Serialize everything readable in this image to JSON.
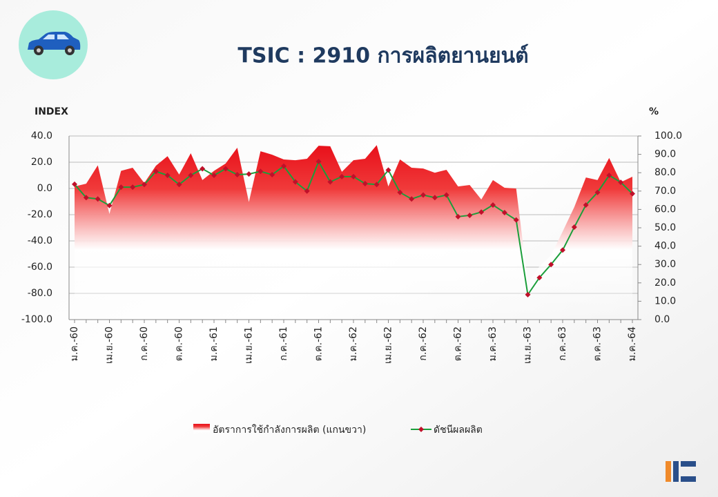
{
  "chart_data": {
    "type": "line",
    "title": "TSIC : 2910 การผลิตยานยนต์",
    "ylabel": "INDEX",
    "y2label": "%",
    "categories": [
      "ม.ค.-60",
      null,
      null,
      "เม.ย.-60",
      null,
      null,
      "ก.ค.-60",
      null,
      null,
      "ต.ค.-60",
      null,
      null,
      "ม.ค.-61",
      null,
      null,
      "เม.ย.-61",
      null,
      null,
      "ก.ค.-61",
      null,
      null,
      "ต.ค.-61",
      null,
      null,
      "ม.ค.-62",
      null,
      null,
      "เม.ย.-62",
      null,
      null,
      "ก.ค.-62",
      null,
      null,
      "ต.ค.-62",
      null,
      null,
      "ม.ค.-63",
      null,
      null,
      "เม.ย.-63",
      null,
      null,
      "ก.ค.-63",
      null,
      null,
      "ต.ค.-63",
      null,
      null,
      "ม.ค.-64"
    ],
    "series": [
      {
        "name": "อัตราการใช้กำลังการผลิต (แกนขวา)",
        "kind": "area",
        "axis": "y2",
        "color": "#e8101a",
        "values": [
          72.5,
          74,
          84,
          57.5,
          81,
          82.7,
          74.4,
          83.8,
          89,
          79,
          90.6,
          76,
          81,
          85,
          93.6,
          64,
          91.7,
          89.8,
          87.2,
          86.8,
          87.6,
          94.7,
          94.4,
          80.5,
          86.8,
          87.6,
          95,
          72.5,
          87.2,
          82.7,
          82.3,
          80,
          81.6,
          72.5,
          73.3,
          65.4,
          76,
          71.8,
          71.4,
          20,
          29,
          35,
          48,
          61.3,
          77.4,
          76,
          88,
          74.8,
          77.8
        ]
      },
      {
        "name": "ดัชนีผลผลิต",
        "kind": "line",
        "color": "#1a9e3a",
        "marker_color": "#c0102a",
        "values": [
          3.2,
          -7,
          -8,
          -13,
          1,
          1,
          3,
          13,
          10,
          3,
          10,
          15,
          10,
          15,
          10.5,
          11,
          13,
          10.5,
          17,
          5,
          -2,
          20.5,
          5,
          9,
          9,
          3.7,
          3,
          14,
          -3,
          -8,
          -5,
          -7,
          -5,
          -21.5,
          -20.5,
          -18,
          -12.6,
          -18.4,
          -24,
          -81,
          -68,
          -58,
          -47,
          -29.5,
          -12.6,
          -3,
          10,
          4.7,
          -4
        ]
      }
    ],
    "ylim": [
      -100,
      40
    ],
    "yticks": [
      {
        "value": -100,
        "label": "-100.0"
      },
      {
        "value": -80,
        "label": "-80.0"
      },
      {
        "value": -60,
        "label": "-60.0"
      },
      {
        "value": -40,
        "label": "-40.0"
      },
      {
        "value": -20,
        "label": "-20.0"
      },
      {
        "value": 0,
        "label": "0.0"
      },
      {
        "value": 20,
        "label": "20.0"
      },
      {
        "value": 40,
        "label": "40.0"
      }
    ],
    "y2lim": [
      0,
      100
    ],
    "y2ticks": [
      {
        "value": 0,
        "label": "0.0"
      },
      {
        "value": 10,
        "label": "10.0"
      },
      {
        "value": 20,
        "label": "20.0"
      },
      {
        "value": 30,
        "label": "30.0"
      },
      {
        "value": 40,
        "label": "40.0"
      },
      {
        "value": 50,
        "label": "50.0"
      },
      {
        "value": 60,
        "label": "60.0"
      },
      {
        "value": 70,
        "label": "70.0"
      },
      {
        "value": 80,
        "label": "80.0"
      },
      {
        "value": 90,
        "label": "90.0"
      },
      {
        "value": 100,
        "label": "100.0"
      }
    ],
    "grid": true
  }
}
